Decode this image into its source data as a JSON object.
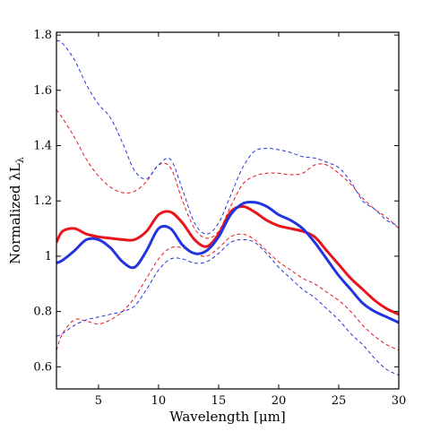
{
  "chart_data": {
    "type": "line",
    "title": "",
    "xlabel": "Wavelength [μm]",
    "ylabel_main": "Normalized λL",
    "ylabel_sub": "λ",
    "xlim": [
      1.5,
      30
    ],
    "ylim": [
      0.52,
      1.81
    ],
    "xticks": [
      5,
      10,
      15,
      20,
      25,
      30
    ],
    "yticks": [
      0.6,
      0.8,
      1,
      1.2,
      1.4,
      1.6,
      1.8
    ],
    "ytick_labels": [
      "0.6",
      "0.8",
      "1",
      "1.2",
      "1.4",
      "1.6",
      "1.8"
    ],
    "grid": false,
    "legend": "none",
    "series": [
      {
        "color": "#e8141a",
        "style": "solid",
        "x": [
          1.5,
          2,
          3,
          4,
          5,
          6,
          7,
          8,
          9,
          10,
          11,
          12,
          13,
          14,
          15,
          16,
          17,
          18,
          19,
          20,
          21,
          22,
          23,
          24,
          25,
          26,
          27,
          28,
          29,
          30
        ],
        "y": [
          1.05,
          1.09,
          1.1,
          1.08,
          1.07,
          1.065,
          1.06,
          1.06,
          1.09,
          1.15,
          1.16,
          1.12,
          1.06,
          1.035,
          1.08,
          1.16,
          1.18,
          1.16,
          1.13,
          1.11,
          1.1,
          1.09,
          1.07,
          1.02,
          0.97,
          0.92,
          0.88,
          0.84,
          0.81,
          0.79
        ]
      },
      {
        "color": "#2234e0",
        "style": "solid",
        "x": [
          1.5,
          2,
          3,
          4,
          5,
          6,
          7,
          8,
          9,
          10,
          11,
          12,
          13,
          14,
          15,
          16,
          17,
          18,
          19,
          20,
          21,
          22,
          23,
          24,
          25,
          26,
          27,
          28,
          29,
          30
        ],
        "y": [
          0.975,
          0.985,
          1.02,
          1.06,
          1.06,
          1.03,
          0.98,
          0.96,
          1.02,
          1.1,
          1.1,
          1.04,
          1.01,
          1.02,
          1.07,
          1.15,
          1.19,
          1.195,
          1.18,
          1.15,
          1.13,
          1.1,
          1.05,
          0.99,
          0.93,
          0.88,
          0.83,
          0.8,
          0.78,
          0.76
        ]
      },
      {
        "color": "#e8141a",
        "style": "dashed",
        "x": [
          1.5,
          2,
          3,
          4,
          5,
          6,
          7,
          8,
          9,
          10,
          11,
          12,
          13,
          14,
          15,
          16,
          17,
          18,
          19,
          20,
          21,
          22,
          23,
          24,
          25,
          26,
          27,
          28,
          29,
          30
        ],
        "y": [
          1.53,
          1.5,
          1.43,
          1.35,
          1.29,
          1.25,
          1.23,
          1.235,
          1.27,
          1.33,
          1.32,
          1.2,
          1.1,
          1.065,
          1.09,
          1.18,
          1.26,
          1.29,
          1.3,
          1.3,
          1.295,
          1.3,
          1.33,
          1.33,
          1.3,
          1.26,
          1.21,
          1.17,
          1.14,
          1.1
        ]
      },
      {
        "color": "#2234e0",
        "style": "dashed",
        "x": [
          1.5,
          2,
          3,
          4,
          5,
          6,
          7,
          8,
          9,
          10,
          11,
          12,
          13,
          14,
          15,
          16,
          17,
          18,
          19,
          20,
          21,
          22,
          23,
          24,
          25,
          26,
          27,
          28,
          29,
          30
        ],
        "y": [
          1.78,
          1.77,
          1.71,
          1.62,
          1.55,
          1.5,
          1.41,
          1.31,
          1.28,
          1.33,
          1.35,
          1.24,
          1.12,
          1.08,
          1.12,
          1.22,
          1.32,
          1.38,
          1.39,
          1.385,
          1.375,
          1.36,
          1.355,
          1.34,
          1.32,
          1.27,
          1.2,
          1.17,
          1.13,
          1.11
        ]
      },
      {
        "color": "#e8141a",
        "style": "dashed",
        "x": [
          1.5,
          2,
          3,
          4,
          5,
          6,
          7,
          8,
          9,
          10,
          11,
          12,
          13,
          14,
          15,
          16,
          17,
          18,
          19,
          20,
          21,
          22,
          23,
          24,
          25,
          26,
          27,
          28,
          29,
          30
        ],
        "y": [
          0.66,
          0.72,
          0.77,
          0.765,
          0.755,
          0.77,
          0.8,
          0.85,
          0.92,
          0.99,
          1.03,
          1.03,
          1.01,
          1.0,
          1.03,
          1.07,
          1.08,
          1.06,
          1.02,
          0.98,
          0.95,
          0.92,
          0.9,
          0.87,
          0.84,
          0.8,
          0.75,
          0.71,
          0.68,
          0.66
        ]
      },
      {
        "color": "#2234e0",
        "style": "dashed",
        "x": [
          1.5,
          2,
          3,
          4,
          5,
          6,
          7,
          8,
          9,
          10,
          11,
          12,
          13,
          14,
          15,
          16,
          17,
          18,
          19,
          20,
          21,
          22,
          23,
          24,
          25,
          26,
          27,
          28,
          29,
          30
        ],
        "y": [
          0.71,
          0.72,
          0.75,
          0.77,
          0.78,
          0.79,
          0.8,
          0.82,
          0.88,
          0.95,
          0.99,
          0.99,
          0.975,
          0.98,
          1.01,
          1.05,
          1.06,
          1.05,
          1.01,
          0.96,
          0.92,
          0.88,
          0.85,
          0.81,
          0.77,
          0.72,
          0.68,
          0.63,
          0.59,
          0.57
        ]
      }
    ]
  }
}
